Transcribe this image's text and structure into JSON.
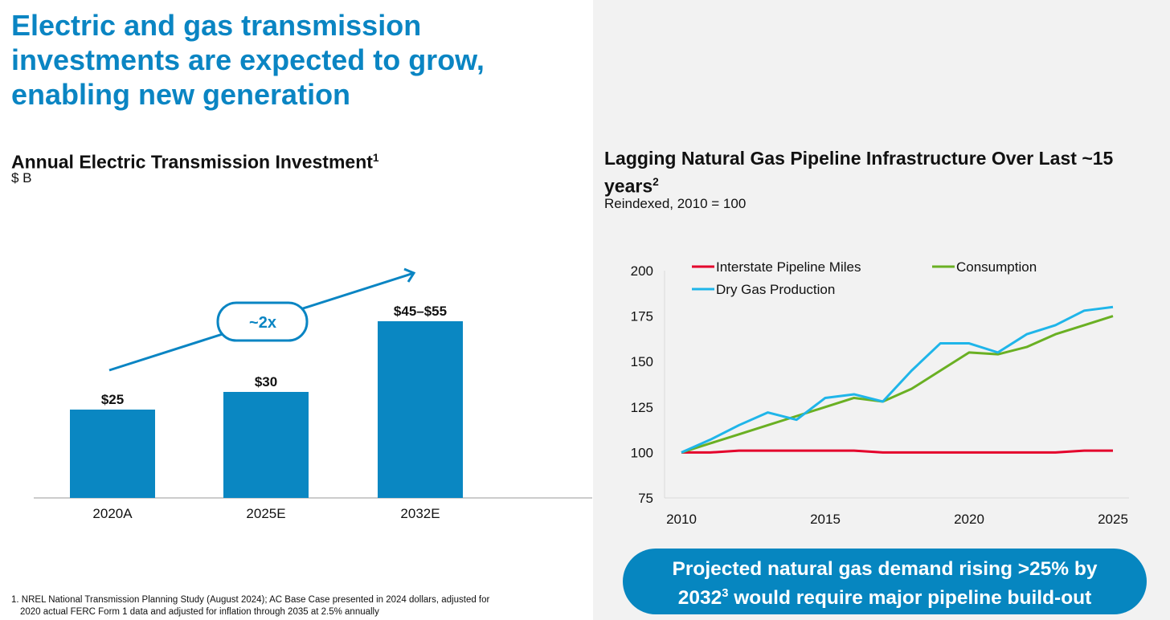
{
  "title": "Electric and gas transmission investments are expected to grow, enabling new generation",
  "chart_data": [
    {
      "type": "bar",
      "title": "Annual Electric Transmission Investment",
      "title_footnote": "1",
      "ylabel": "$ B",
      "categories": [
        "2020A",
        "2025E",
        "2032E"
      ],
      "values": [
        25,
        30,
        50
      ],
      "data_labels": [
        "$25",
        "$30",
        "$45–$55"
      ],
      "annotation": "~2x",
      "ylim": [
        0,
        55
      ],
      "color": "#0a87c2"
    },
    {
      "type": "line",
      "title": "Lagging Natural Gas Pipeline Infrastructure Over Last ~15 years",
      "title_footnote": "2",
      "subtitle": "Reindexed, 2010 = 100",
      "x": [
        2010,
        2011,
        2012,
        2013,
        2014,
        2015,
        2016,
        2017,
        2018,
        2019,
        2020,
        2021,
        2022,
        2023,
        2024,
        2025
      ],
      "xticks": [
        2010,
        2015,
        2020,
        2025
      ],
      "yticks": [
        75,
        100,
        125,
        150,
        175,
        200
      ],
      "ylim": [
        75,
        200
      ],
      "legend_position": "top",
      "series": [
        {
          "name": "Interstate Pipeline Miles",
          "color": "#e4002b",
          "values": [
            100,
            100,
            101,
            101,
            101,
            101,
            101,
            100,
            100,
            100,
            100,
            100,
            100,
            100,
            101,
            101
          ]
        },
        {
          "name": "Consumption",
          "color": "#6ab023",
          "values": [
            100,
            105,
            110,
            115,
            120,
            125,
            130,
            128,
            135,
            145,
            155,
            154,
            158,
            165,
            170,
            175
          ]
        },
        {
          "name": "Dry Gas Production",
          "color": "#1fb5e9",
          "values": [
            100,
            107,
            115,
            122,
            118,
            130,
            132,
            128,
            145,
            160,
            160,
            155,
            165,
            170,
            178,
            180
          ]
        }
      ]
    }
  ],
  "callout": {
    "line1": "Projected natural gas demand rising >25% by",
    "line2_a": "2032",
    "line2_sup": "3",
    "line2_b": " would require major pipeline build-out"
  },
  "footnote": {
    "line1": "1. NREL National Transmission Planning Study (August 2024); AC Base Case presented in 2024 dollars, adjusted for",
    "line2": "2020 actual FERC Form 1 data and adjusted for inflation through 2035 at 2.5% annually"
  }
}
